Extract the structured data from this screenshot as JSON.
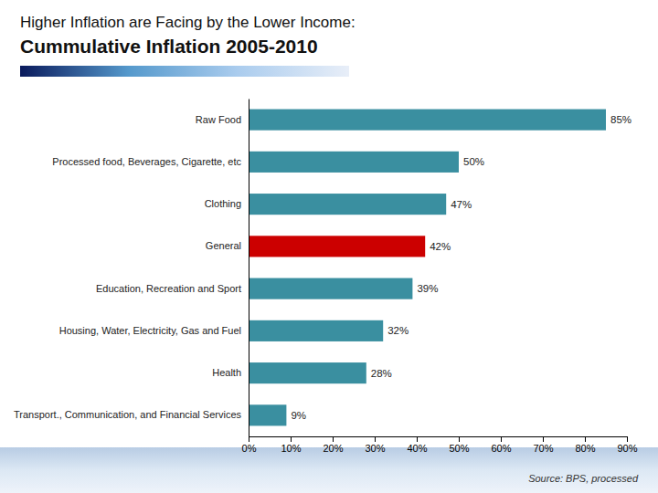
{
  "chart_data": {
    "type": "bar",
    "title": "Higher Inflation are Facing by the Lower Income:",
    "subtitle": "Cummulative Inflation 2005-2010",
    "annotations": [
      "Source: BPS, processed"
    ],
    "orientation": "horizontal",
    "categories": [
      "Raw Food",
      "Processed food, Beverages, Cigarette, etc",
      "Clothing",
      "General",
      "Education, Recreation and Sport",
      "Housing, Water, Electricity, Gas and Fuel",
      "Health",
      "Transport., Communication, and Financial Services"
    ],
    "values": [
      85,
      50,
      47,
      42,
      39,
      32,
      28,
      9
    ],
    "value_labels": [
      "85%",
      "50%",
      "47%",
      "42%",
      "39%",
      "32%",
      "28%",
      "9%"
    ],
    "colors": [
      "#3a8fa0",
      "#3a8fa0",
      "#3a8fa0",
      "#cc0000",
      "#3a8fa0",
      "#3a8fa0",
      "#3a8fa0",
      "#3a8fa0"
    ],
    "xlim": [
      0,
      90
    ],
    "xticks": [
      {
        "value": 0,
        "label": "0%"
      },
      {
        "value": 10,
        "label": "10%"
      },
      {
        "value": 20,
        "label": "20%"
      },
      {
        "value": 30,
        "label": "30%"
      },
      {
        "value": 40,
        "label": "40%"
      },
      {
        "value": 50,
        "label": "50%"
      },
      {
        "value": 60,
        "label": "60%"
      },
      {
        "value": 70,
        "label": "70%"
      },
      {
        "value": 80,
        "label": "80%"
      },
      {
        "value": 90,
        "label": "90%"
      }
    ],
    "data_labels": true,
    "grid": false
  }
}
